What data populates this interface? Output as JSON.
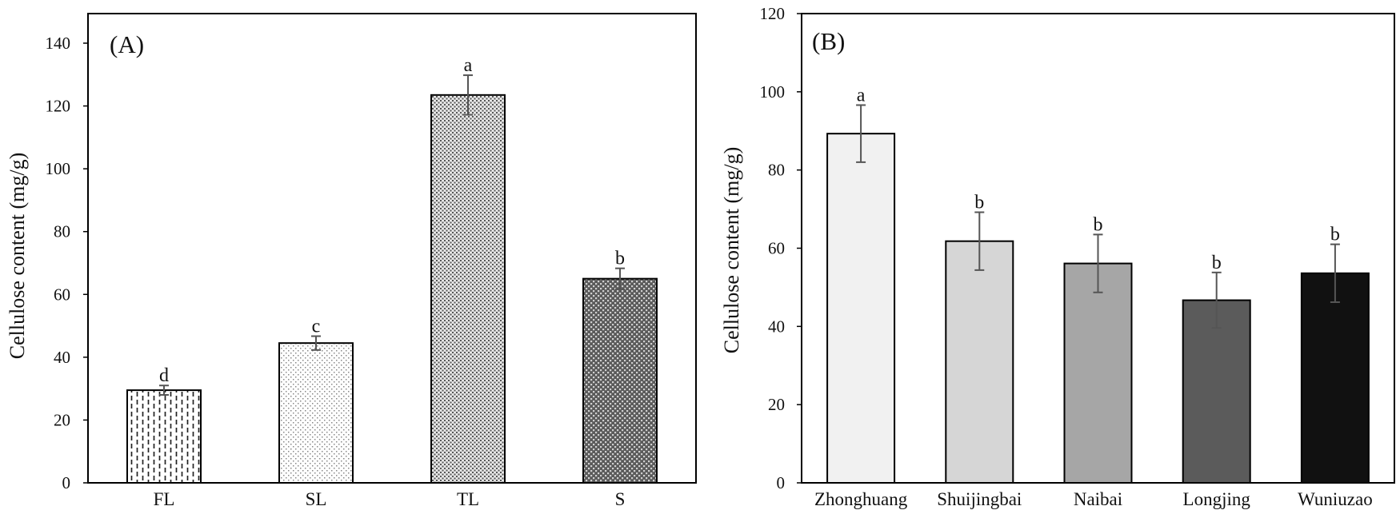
{
  "chart_data": [
    {
      "type": "bar",
      "panel_label": "(A)",
      "title": "",
      "xlabel": "",
      "ylabel": "Cellulose content (mg/g)",
      "ylim": [
        0,
        150
      ],
      "yticks": [
        0,
        20,
        40,
        60,
        80,
        100,
        120,
        140
      ],
      "categories": [
        "FL",
        "SL",
        "TL",
        "S"
      ],
      "values": [
        29.5,
        44.5,
        123.5,
        65
      ],
      "errors": [
        1.5,
        2.2,
        6.3,
        3.3
      ],
      "significance": [
        "d",
        "c",
        "a",
        "b"
      ],
      "bar_patterns": [
        "vertical-dashes",
        "light-dots",
        "medium-dots",
        "dark-dots"
      ],
      "grid": false
    },
    {
      "type": "bar",
      "panel_label": "(B)",
      "title": "",
      "xlabel": "",
      "ylabel": "Cellulose content (mg/g)",
      "ylim": [
        0,
        120
      ],
      "yticks": [
        0,
        20,
        40,
        60,
        80,
        100,
        120
      ],
      "categories": [
        "Zhonghuang",
        "Shuijingbai",
        "Naibai",
        "Longjing",
        "Wuniuzao"
      ],
      "values": [
        89.3,
        61.8,
        56.1,
        46.7,
        53.6
      ],
      "errors": [
        7.3,
        7.4,
        7.4,
        7.1,
        7.4
      ],
      "significance": [
        "a",
        "b",
        "b",
        "b",
        "b"
      ],
      "bar_colors": [
        "#f1f1f1",
        "#d6d6d6",
        "#a6a6a6",
        "#5b5b5b",
        "#111111"
      ],
      "grid": false
    }
  ]
}
